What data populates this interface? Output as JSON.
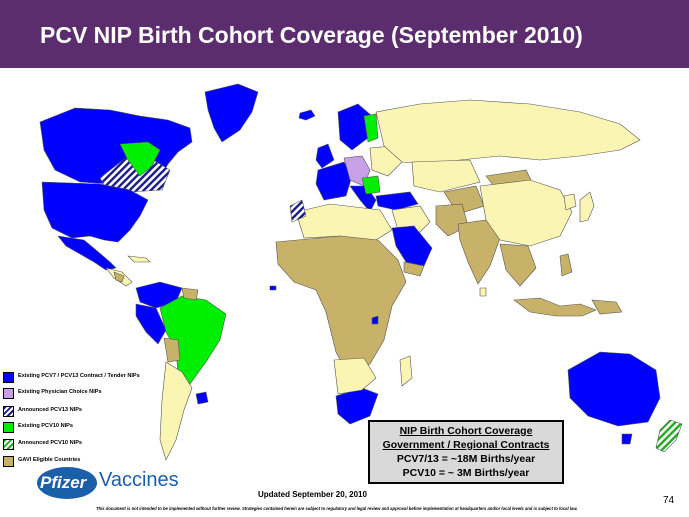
{
  "title": "PCV NIP Birth Cohort Coverage (September 2010)",
  "colors": {
    "title_bar": "#5b2d6e",
    "existing_pcv7_pcv13": "#0000ff",
    "physician_choice": "#c9a0e8",
    "pcv10": "#00ee00",
    "gavi": "#c8b26a",
    "other_land": "#fbf5b4",
    "border": "#555555"
  },
  "legend": [
    {
      "label": "Existing PCV7 / PCV13 Contract / Tender NIPs",
      "pattern": "solid-blue"
    },
    {
      "label": "Existing Physician   Choice NIPs",
      "pattern": "solid-lavender"
    },
    {
      "label": "Announced PCV13  NIPs",
      "pattern": "hatch-blue"
    },
    {
      "label": "Existing PCV10  NIPs",
      "pattern": "solid-green"
    },
    {
      "label": "Announced PCV10  NIPs",
      "pattern": "hatch-green"
    },
    {
      "label": "GAVI Eligible Countries",
      "pattern": "solid-tan"
    }
  ],
  "infobox": {
    "line1": "NIP Birth Cohort Coverage",
    "line2": "Government / Regional Contracts",
    "line3": "PCV7/13 = ~18M Births/year",
    "line4": "PCV10 = ~ 3M Births/year"
  },
  "logo": {
    "brand": "Pfizer",
    "division": "Vaccines",
    "icon": "pfizer-oval-logo"
  },
  "updated": "Updated September 20, 2010",
  "page_number": "74",
  "disclaimer": "This document is not intended to be implemented without further review. Strategies contained herein are subject to regulatory and legal review and approval before implementation at headquarters and/or local levels and is subject to local law."
}
